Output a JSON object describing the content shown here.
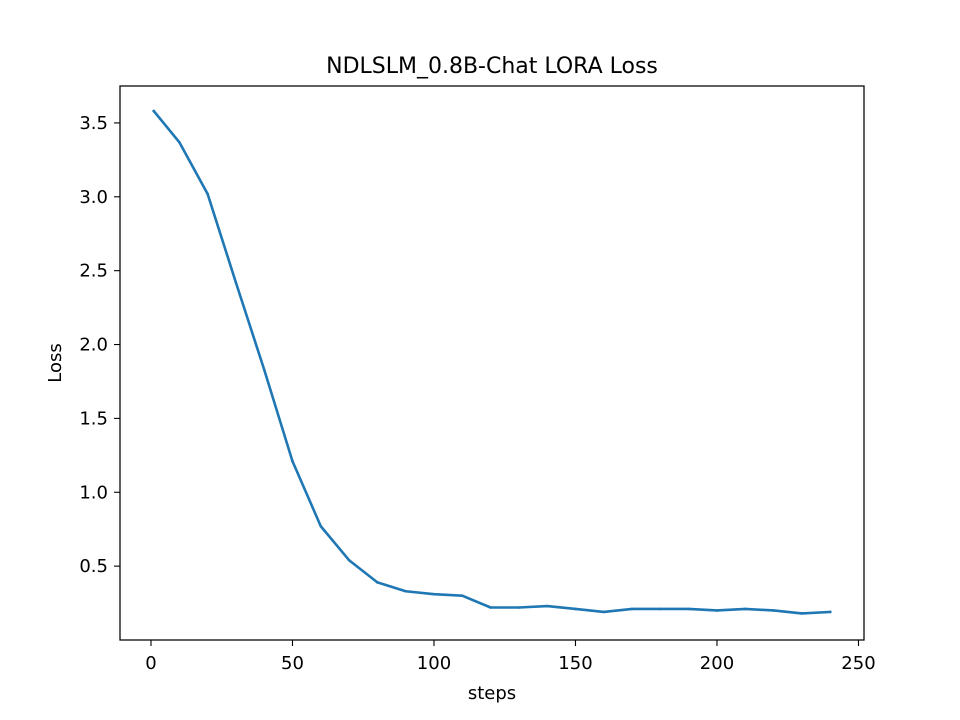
{
  "chart_data": {
    "type": "line",
    "title": "NDLSLM_0.8B-Chat LORA Loss",
    "xlabel": "steps",
    "ylabel": "Loss",
    "xlim": [
      -10.95,
      251.95
    ],
    "ylim": [
      0.0,
      3.75
    ],
    "xticks": [
      0,
      50,
      100,
      150,
      200,
      250
    ],
    "yticks": [
      0.5,
      1.0,
      1.5,
      2.0,
      2.5,
      3.0,
      3.5
    ],
    "ytick_labels": [
      "0.5",
      "1.0",
      "1.5",
      "2.0",
      "2.5",
      "3.0",
      "3.5"
    ],
    "grid": false,
    "line_color": "#1f77b4",
    "series": [
      {
        "x": [
          1,
          10,
          20,
          30,
          40,
          50,
          60,
          70,
          80,
          90,
          100,
          110,
          120,
          130,
          140,
          150,
          160,
          170,
          180,
          190,
          200,
          210,
          220,
          230,
          240
        ],
        "y": [
          3.58,
          3.37,
          3.02,
          2.42,
          1.83,
          1.21,
          0.77,
          0.54,
          0.39,
          0.33,
          0.31,
          0.3,
          0.22,
          0.22,
          0.23,
          0.21,
          0.19,
          0.21,
          0.21,
          0.21,
          0.2,
          0.21,
          0.2,
          0.18,
          0.19
        ]
      }
    ]
  }
}
